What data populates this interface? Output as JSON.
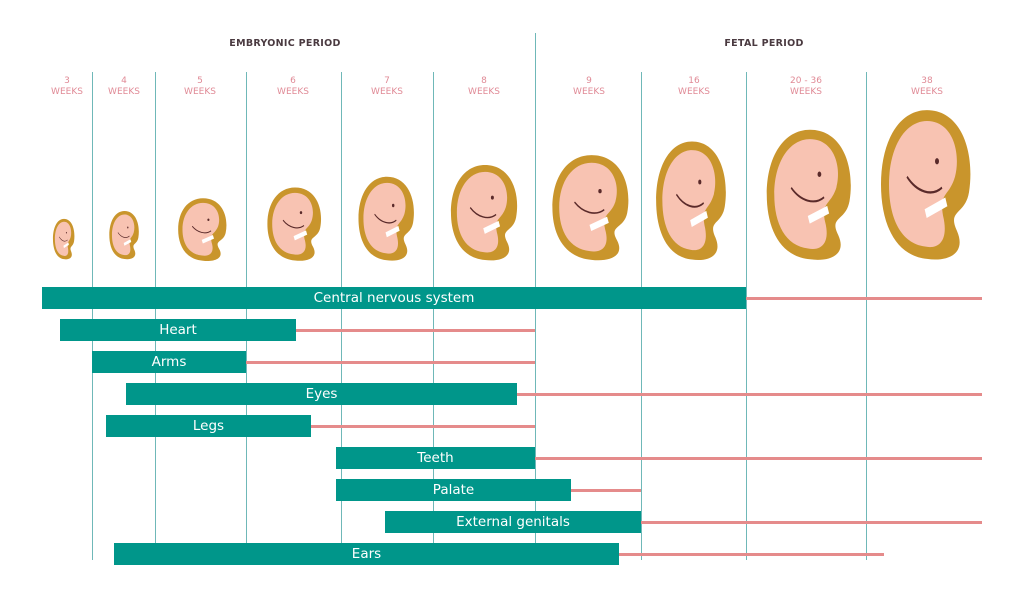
{
  "periods": {
    "embryonic": "EMBRYONIC PERIOD",
    "fetal": "FETAL PERIOD"
  },
  "stages": [
    {
      "number": "3",
      "unit": "WEEKS"
    },
    {
      "number": "4",
      "unit": "WEEKS"
    },
    {
      "number": "5",
      "unit": "WEEKS"
    },
    {
      "number": "6",
      "unit": "WEEKS"
    },
    {
      "number": "7",
      "unit": "WEEKS"
    },
    {
      "number": "8",
      "unit": "WEEKS"
    },
    {
      "number": "9",
      "unit": "WEEKS"
    },
    {
      "number": "16",
      "unit": "WEEKS"
    },
    {
      "number": "20 - 36",
      "unit": "WEEKS"
    },
    {
      "number": "38",
      "unit": "WEEKS"
    }
  ],
  "organs": [
    {
      "label": "Central nervous system"
    },
    {
      "label": "Heart"
    },
    {
      "label": "Arms"
    },
    {
      "label": "Eyes"
    },
    {
      "label": "Legs"
    },
    {
      "label": "Teeth"
    },
    {
      "label": "Palate"
    },
    {
      "label": "External genitals"
    },
    {
      "label": "Ears"
    }
  ],
  "colors": {
    "critical_period": "#00968a",
    "less_sensitive_period": "#e58b8b",
    "divider": "#6fb8b8",
    "amnion": "#c9952c",
    "skin": "#f8c3b2"
  }
}
